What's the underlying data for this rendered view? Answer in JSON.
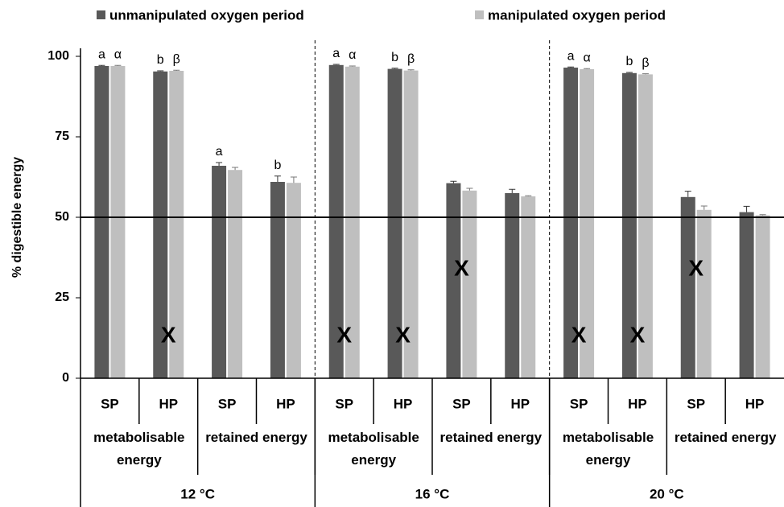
{
  "chart_data": {
    "type": "bar",
    "ylabel": "% digestible energy",
    "categories": [
      "SP",
      "HP",
      "SP",
      "HP",
      "SP",
      "HP",
      "SP",
      "HP",
      "SP",
      "HP",
      "SP",
      "HP"
    ],
    "groups": [
      "metabolisable energy",
      "retained energy",
      "metabolisable energy",
      "retained energy",
      "metabolisable energy",
      "retained energy"
    ],
    "temperatures": [
      "12 °C",
      "16 °C",
      "20 °C"
    ],
    "series": [
      {
        "name": "unmanipulated oxygen period",
        "color": "#595959",
        "values": [
          97,
          95.3,
          66,
          61,
          97.3,
          96.1,
          60.6,
          57.5,
          96.5,
          94.8,
          56.3,
          51.6
        ],
        "errors": [
          0.2,
          0.2,
          1,
          1.8,
          0.2,
          0.2,
          0.6,
          1.2,
          0.2,
          0.2,
          1.8,
          1.8
        ]
      },
      {
        "name": "manipulated oxygen period",
        "color": "#bfbfbf",
        "values": [
          97,
          95.5,
          64.7,
          60.7,
          96.8,
          95.6,
          58.3,
          56.5,
          96,
          94.4,
          52.3,
          50.6
        ],
        "errors": [
          0.2,
          0.2,
          0.8,
          1.8,
          0.2,
          0.2,
          0.7,
          0.2,
          0.2,
          0.2,
          1.2,
          0.2
        ]
      }
    ],
    "ylim": [
      0,
      100
    ],
    "yticks": [
      0,
      25,
      50,
      75,
      100
    ],
    "refline": 50,
    "letters": [
      {
        "label": "a",
        "category": 0,
        "series": 0
      },
      {
        "label": "α",
        "category": 0,
        "series": 1
      },
      {
        "label": "b",
        "category": 1,
        "series": 0
      },
      {
        "label": "β",
        "category": 1,
        "series": 1
      },
      {
        "label": "a",
        "category": 2,
        "series": 0
      },
      {
        "label": "b",
        "category": 3,
        "series": 0
      },
      {
        "label": "a",
        "category": 4,
        "series": 0
      },
      {
        "label": "α",
        "category": 4,
        "series": 1
      },
      {
        "label": "b",
        "category": 5,
        "series": 0
      },
      {
        "label": "β",
        "category": 5,
        "series": 1
      },
      {
        "label": "a",
        "category": 8,
        "series": 0
      },
      {
        "label": "α",
        "category": 8,
        "series": 1
      },
      {
        "label": "b",
        "category": 9,
        "series": 0
      },
      {
        "label": "β",
        "category": 9,
        "series": 1
      }
    ],
    "markers": [
      {
        "label": "X",
        "category": 1
      },
      {
        "label": "X",
        "category": 4
      },
      {
        "label": "X",
        "category": 5
      },
      {
        "label": "X",
        "category": 6
      },
      {
        "label": "X",
        "category": 8
      },
      {
        "label": "X",
        "category": 9
      },
      {
        "label": "X",
        "category": 10
      }
    ]
  }
}
